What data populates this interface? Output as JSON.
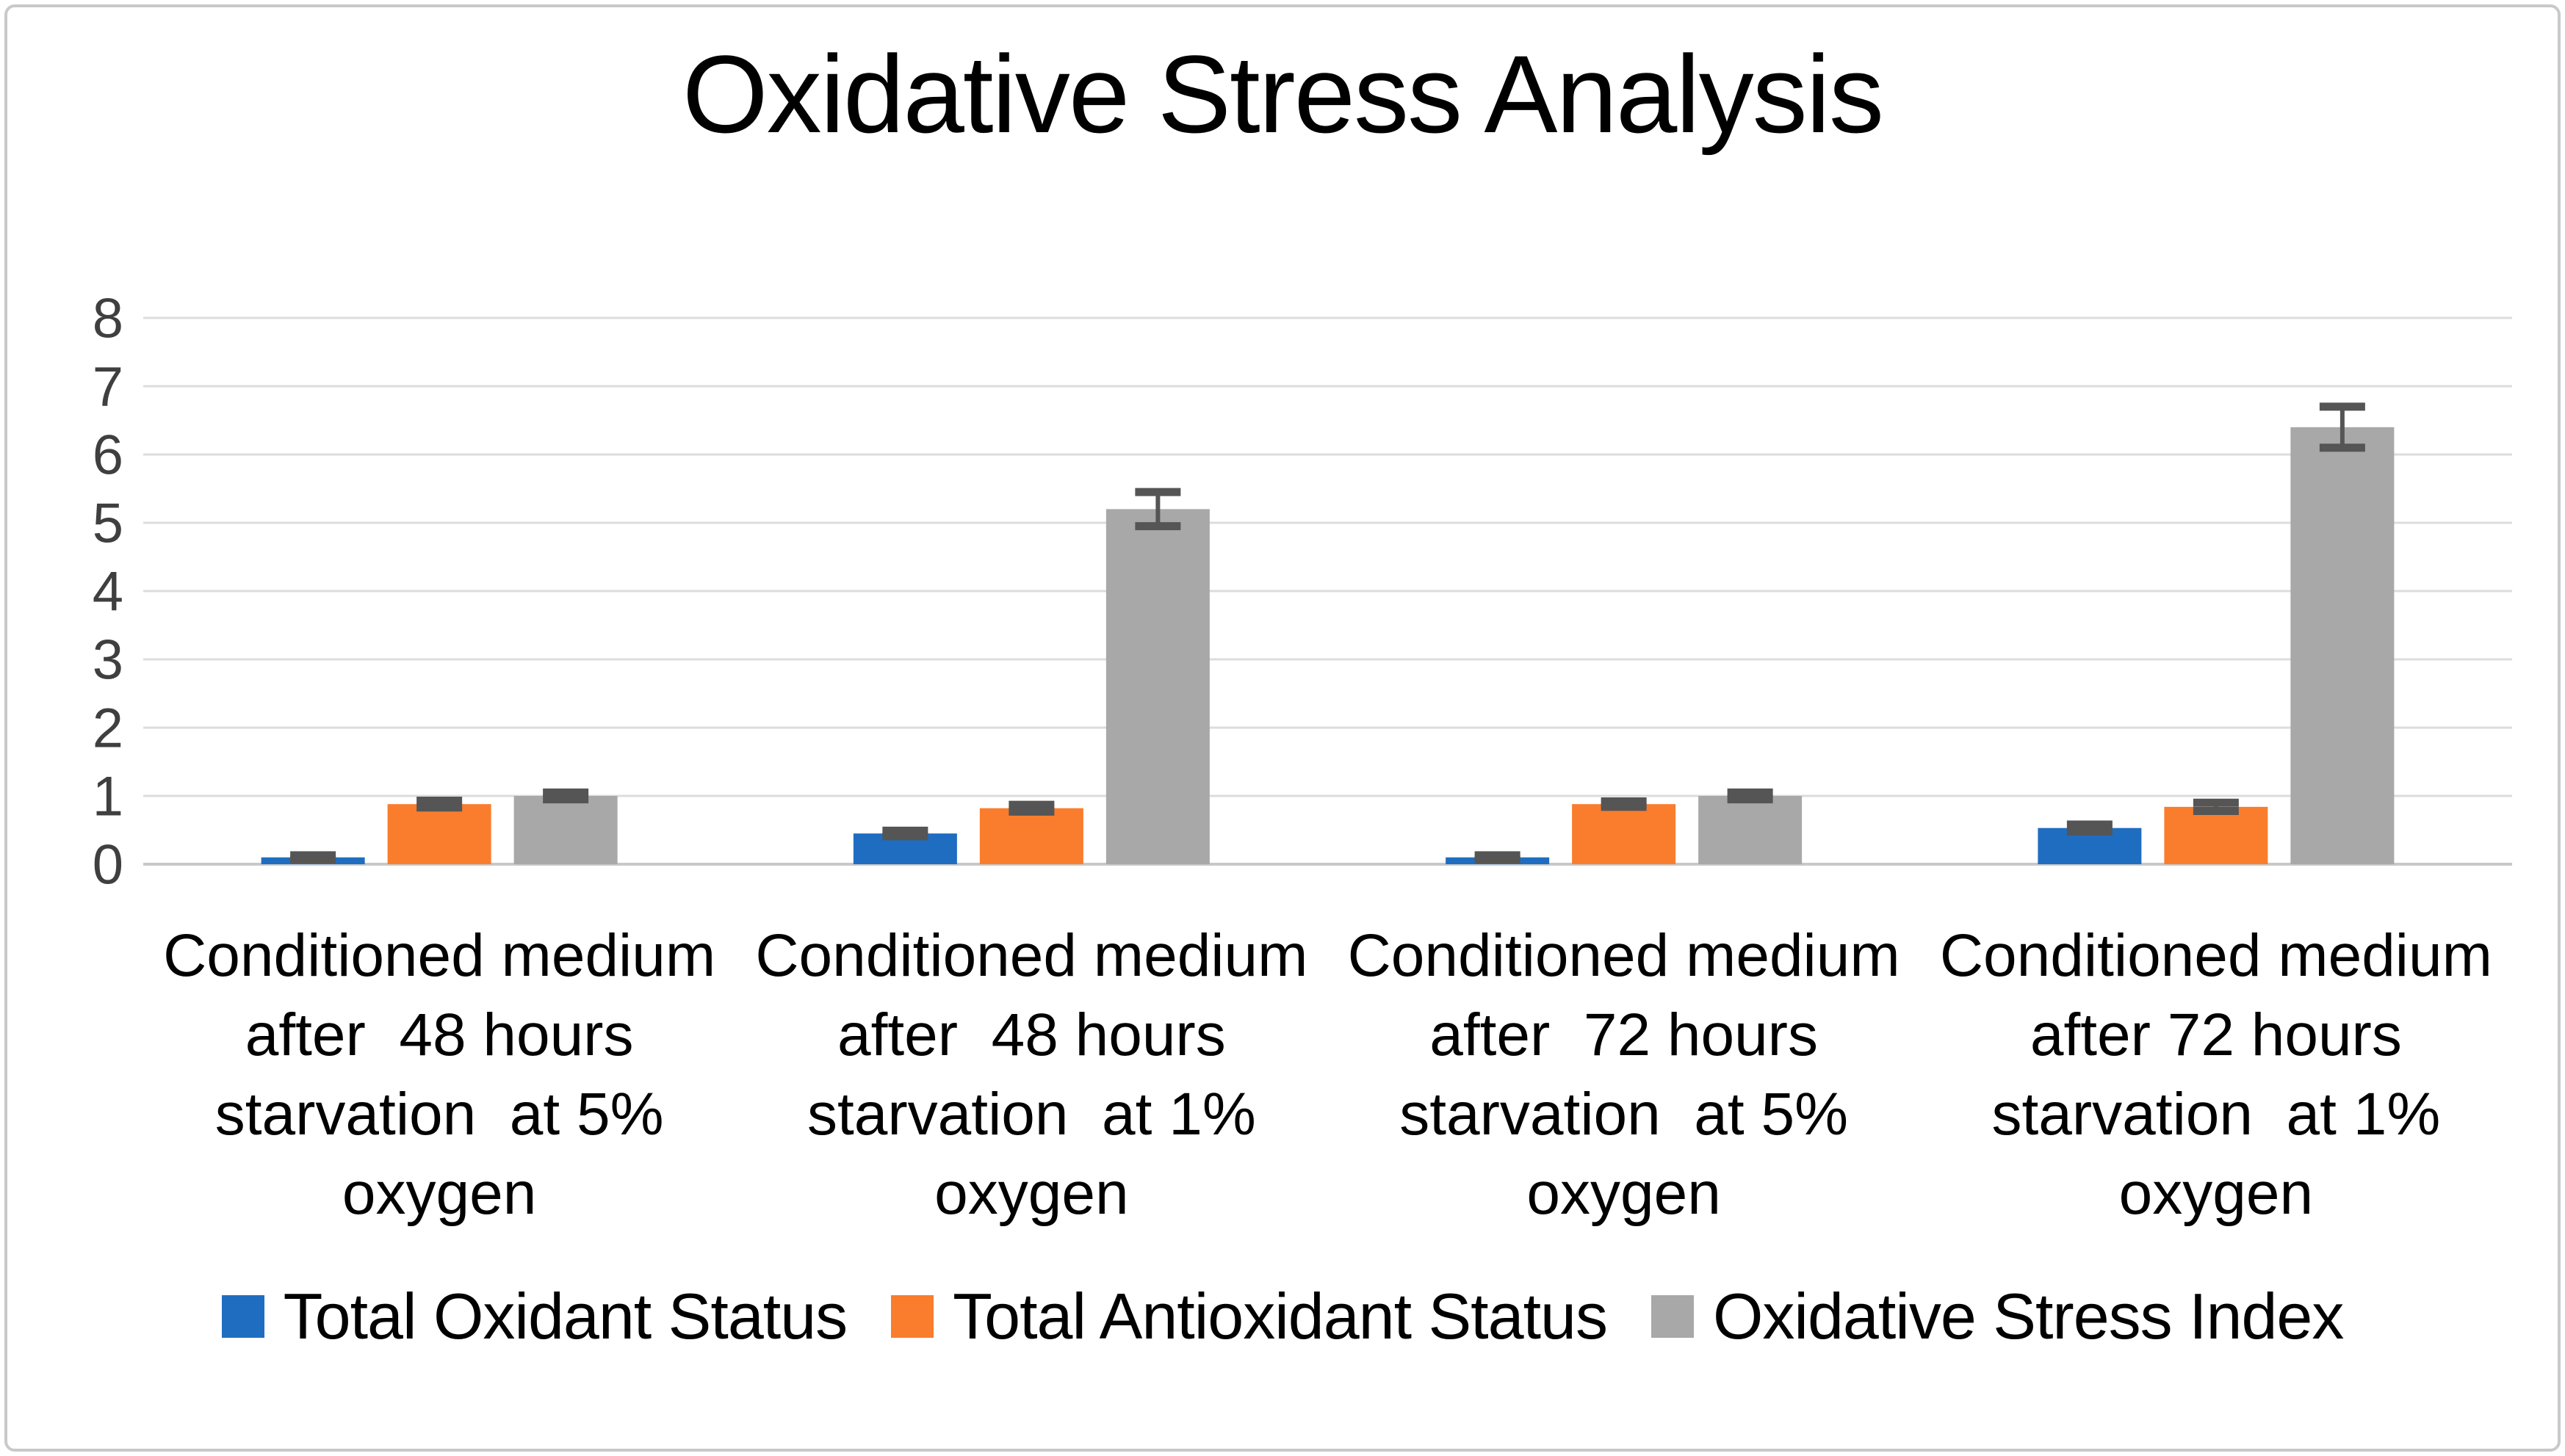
{
  "title": "Oxidative Stress Analysis",
  "chart_data": {
    "type": "bar",
    "title": "Oxidative Stress Analysis",
    "categories": [
      "Conditioned medium after 48 hours starvation at 5% oxygen",
      "Conditioned medium after 48 hours starvation at 1% oxygen",
      "Conditioned medium after 72 hours starvation at 5% oxygen",
      "Conditioned medium after 72 hours starvation at 1% oxygen"
    ],
    "category_lines": [
      [
        "Conditioned medium",
        "after  48 hours",
        "starvation  at 5%",
        "oxygen"
      ],
      [
        "Conditioned medium",
        "after  48 hours",
        "starvation  at 1%",
        "oxygen"
      ],
      [
        "Conditioned medium",
        "after  72 hours",
        "starvation  at 5%",
        "oxygen"
      ],
      [
        "Conditioned medium",
        "after 72 hours",
        "starvation  at 1%",
        "oxygen"
      ]
    ],
    "series": [
      {
        "name": "Total Oxidant Status",
        "color": "#1f6dc1",
        "values": [
          0.1,
          0.45,
          0.1,
          0.53
        ],
        "errors": [
          0.03,
          0.04,
          0.03,
          0.05
        ]
      },
      {
        "name": "Total Antioxidant Status",
        "color": "#f97d2c",
        "values": [
          0.88,
          0.82,
          0.88,
          0.84
        ],
        "errors": [
          0.05,
          0.05,
          0.04,
          0.06
        ]
      },
      {
        "name": "Oxidative Stress Index",
        "color": "#a8a8a8",
        "values": [
          1.0,
          5.2,
          1.0,
          6.4
        ],
        "errors": [
          0.05,
          0.25,
          0.05,
          0.3
        ]
      }
    ],
    "y_axis": {
      "min": 0,
      "max": 8,
      "step": 1,
      "tick_labels": [
        "0",
        "1",
        "2",
        "3",
        "4",
        "5",
        "6",
        "7",
        "8"
      ]
    },
    "grid": true,
    "legend_position": "bottom",
    "colors": {
      "gridline": "#dcdcdc",
      "baseline": "#c8c8c8",
      "error_bar": "#555555",
      "tick_label": "#3f3f3f",
      "border": "#c9c9c9"
    }
  }
}
